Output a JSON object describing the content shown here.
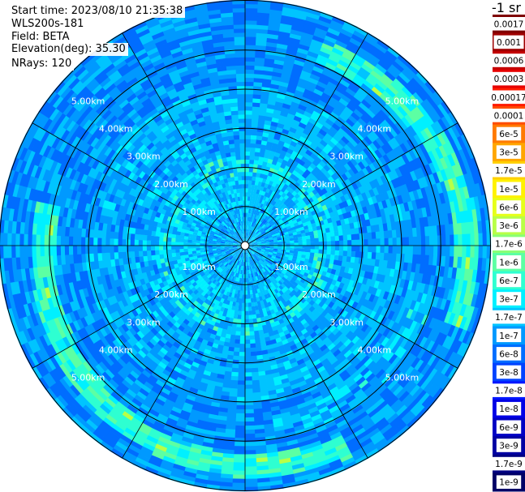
{
  "header": {
    "start_time": "Start time: 2023/08/10 21:35:38",
    "instrument": "WLS200s-181",
    "field": "Field: BETA",
    "elevation": "Elevation(deg): 35.30",
    "nrays": "NRays: 120"
  },
  "chart_data": {
    "type": "heatmap",
    "subtype": "polar-ppi",
    "nrays": 120,
    "elevation_deg": 35.3,
    "field": "BETA",
    "range_rings_km": [
      1.0,
      2.0,
      3.0,
      4.0,
      5.0
    ],
    "max_range_km": 6.28,
    "ring_labels": [
      "1.00km",
      "2.00km",
      "3.00km",
      "4.00km",
      "5.00km"
    ],
    "azimuth_spokes_deg": [
      0,
      30,
      60,
      90,
      120,
      150,
      180,
      210,
      240,
      270,
      300,
      330
    ],
    "colorbar": {
      "title": "-1 sr",
      "levels": [
        {
          "label": "0.0017",
          "color": "#7f0000"
        },
        {
          "label": "0.001",
          "color": "#9e0000"
        },
        {
          "label": "0.0006",
          "color": "#c40000"
        },
        {
          "label": "0.0003",
          "color": "#e60000"
        },
        {
          "label": "0.00017",
          "color": "#ff1a00"
        },
        {
          "label": "0.0001",
          "color": "#ff4d00"
        },
        {
          "label": "6e-5",
          "color": "#ff7a00"
        },
        {
          "label": "3e-5",
          "color": "#ffa600"
        },
        {
          "label": "1.7e-5",
          "color": "#ffd000"
        },
        {
          "label": "1e-5",
          "color": "#fff200"
        },
        {
          "label": "6e-6",
          "color": "#e6ff1a"
        },
        {
          "label": "3e-6",
          "color": "#b8ff47"
        },
        {
          "label": "1.7e-6",
          "color": "#8aff75"
        },
        {
          "label": "1e-6",
          "color": "#5cffa3"
        },
        {
          "label": "6e-7",
          "color": "#2effd1"
        },
        {
          "label": "3e-7",
          "color": "#00f0ff"
        },
        {
          "label": "1.7e-7",
          "color": "#00c4ff"
        },
        {
          "label": "1e-7",
          "color": "#0099ff"
        },
        {
          "label": "6e-8",
          "color": "#006dff"
        },
        {
          "label": "3e-8",
          "color": "#0042ff"
        },
        {
          "label": "1.7e-8",
          "color": "#0016ff"
        },
        {
          "label": "1e-8",
          "color": "#0000e6"
        },
        {
          "label": "6e-9",
          "color": "#0000c4"
        },
        {
          "label": "3e-9",
          "color": "#0000a3"
        },
        {
          "label": "1.7e-9",
          "color": "#000082"
        },
        {
          "label": "1e-9",
          "color": "#000066"
        }
      ]
    }
  }
}
